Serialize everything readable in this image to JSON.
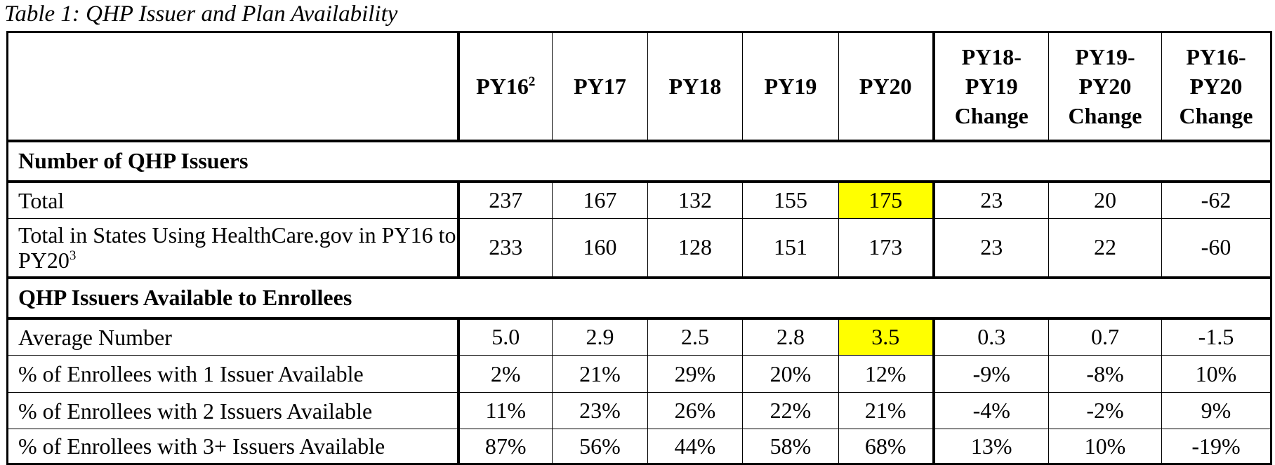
{
  "title": "Table 1: QHP Issuer and Plan Availability",
  "table": {
    "header": [
      {
        "lines": [
          "PY16"
        ],
        "note": "2"
      },
      {
        "lines": [
          "PY17"
        ]
      },
      {
        "lines": [
          "PY18"
        ]
      },
      {
        "lines": [
          "PY19"
        ]
      },
      {
        "lines": [
          "PY20"
        ]
      },
      {
        "lines": [
          "PY18-",
          "PY19",
          "Change"
        ]
      },
      {
        "lines": [
          "PY19-",
          "PY20",
          "Change"
        ]
      },
      {
        "lines": [
          "PY16-",
          "PY20",
          "Change"
        ]
      }
    ],
    "highlight_color": "#ffff00",
    "sections": [
      {
        "title": "Number of QHP Issuers",
        "rows": [
          {
            "label": "Total",
            "values": [
              "237",
              "167",
              "132",
              "155",
              "175",
              "23",
              "20",
              "-62"
            ],
            "highlight": 4
          },
          {
            "label": "Total in States Using HealthCare.gov in PY16 to PY20",
            "note": "3",
            "values": [
              "233",
              "160",
              "128",
              "151",
              "173",
              "23",
              "22",
              "-60"
            ]
          }
        ]
      },
      {
        "title": "QHP Issuers Available to Enrollees",
        "rows": [
          {
            "label": "Average Number",
            "values": [
              "5.0",
              "2.9",
              "2.5",
              "2.8",
              "3.5",
              "0.3",
              "0.7",
              "-1.5"
            ],
            "highlight": 4
          },
          {
            "label": "% of Enrollees with 1 Issuer Available",
            "values": [
              "2%",
              "21%",
              "29%",
              "20%",
              "12%",
              "-9%",
              "-8%",
              "10%"
            ]
          },
          {
            "label": "% of Enrollees with 2 Issuers Available",
            "values": [
              "11%",
              "23%",
              "26%",
              "22%",
              "21%",
              "-4%",
              "-2%",
              "9%"
            ]
          },
          {
            "label": "% of Enrollees with 3+ Issuers Available",
            "values": [
              "87%",
              "56%",
              "44%",
              "58%",
              "68%",
              "13%",
              "10%",
              "-19%"
            ]
          }
        ]
      }
    ]
  }
}
